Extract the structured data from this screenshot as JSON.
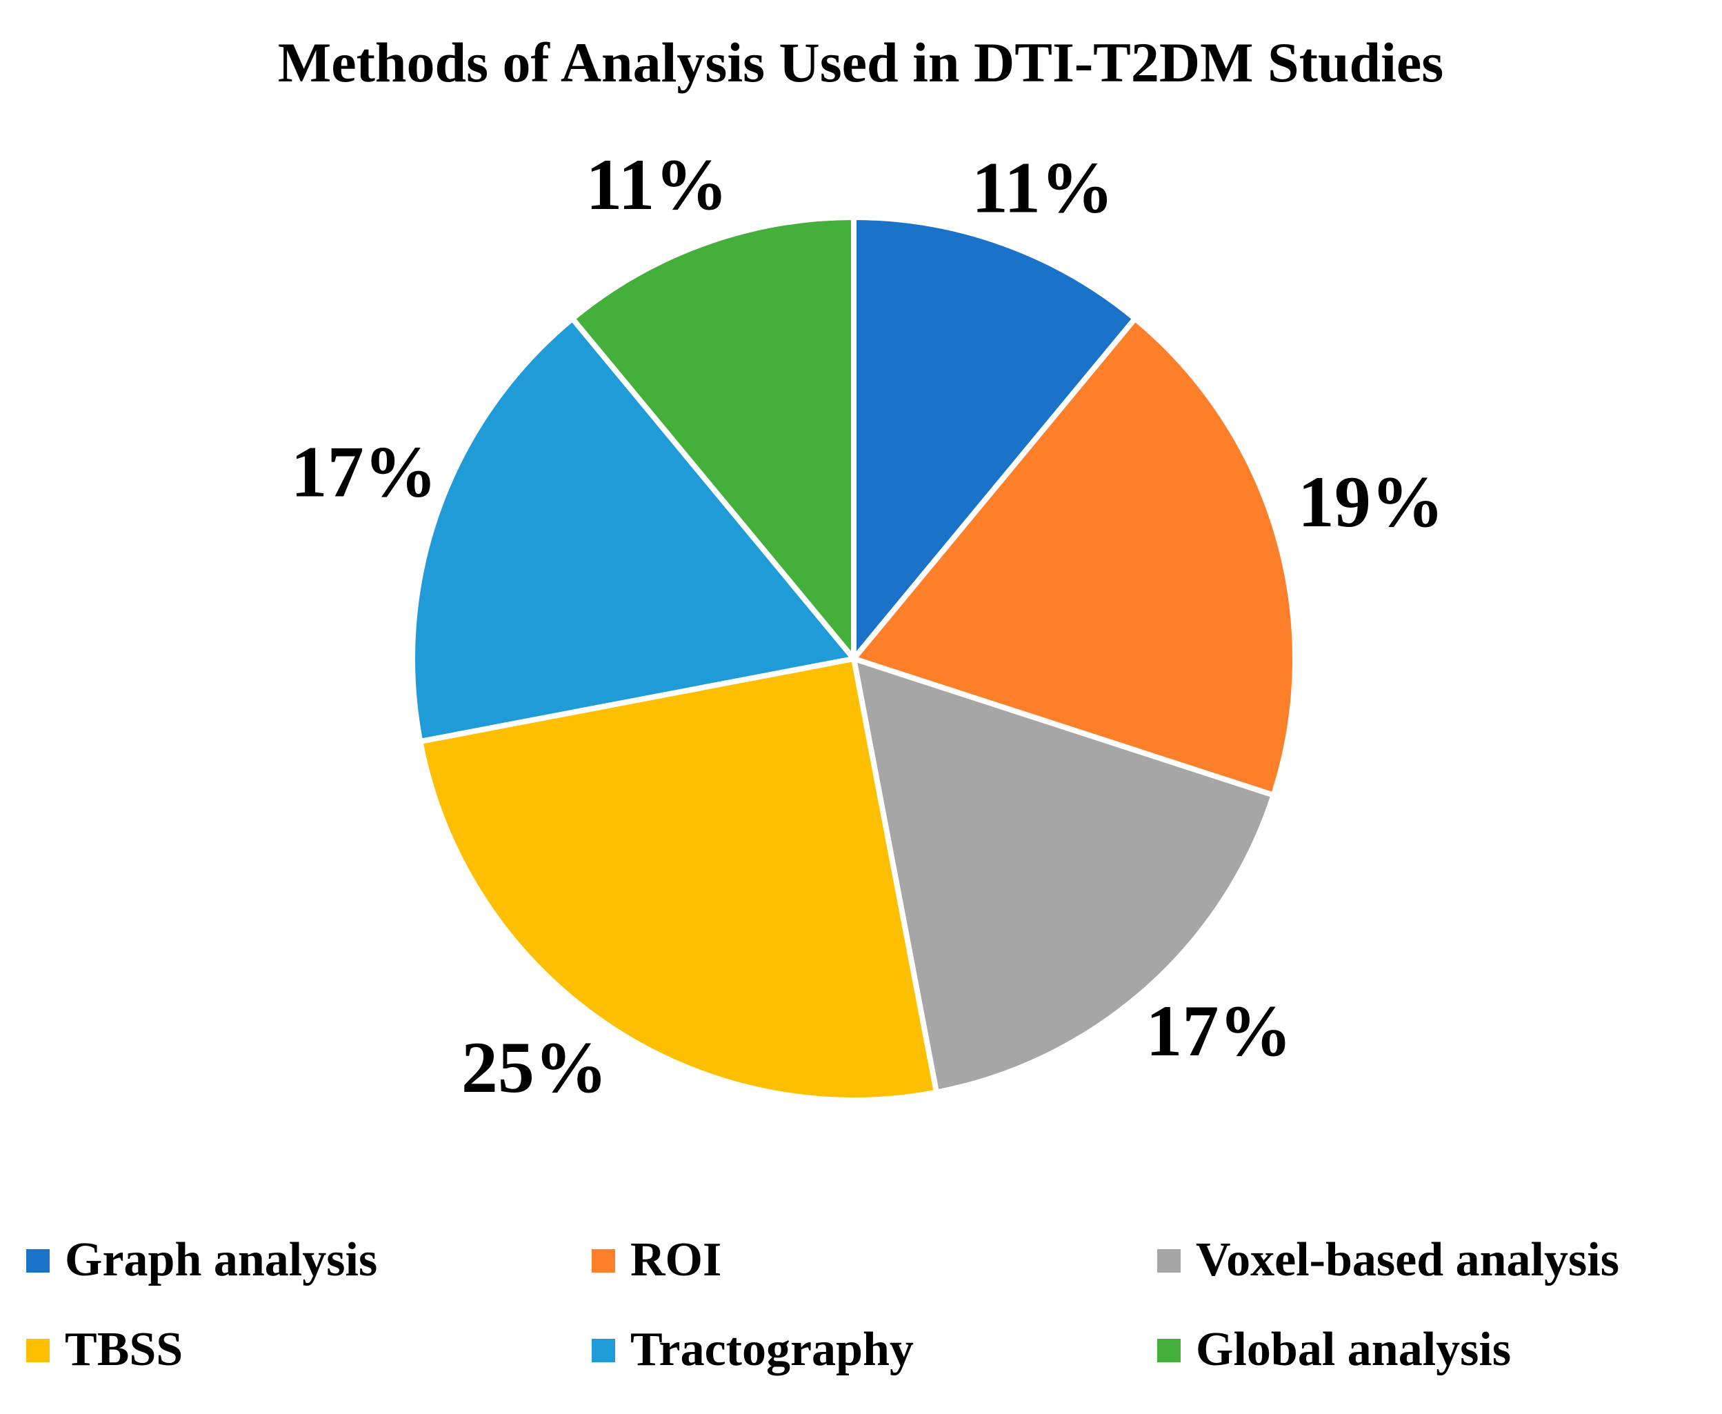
{
  "chart_data": {
    "type": "pie",
    "title": "Methods of Analysis Used in DTI-T2DM Studies",
    "categories": [
      "Graph analysis",
      "ROI",
      "Voxel-based analysis",
      "TBSS",
      "Tractography",
      "Global analysis"
    ],
    "values": [
      11,
      19,
      17,
      25,
      17,
      11
    ],
    "labels": [
      "11%",
      "19%",
      "17%",
      "25%",
      "17%",
      "11%"
    ],
    "colors": [
      "#1a73c8",
      "#fd7f2a",
      "#a6a6a6",
      "#fdbf00",
      "#1f9bd7",
      "#44b03b"
    ],
    "start": "12 o'clock",
    "direction": "clockwise",
    "legend_position": "bottom"
  }
}
